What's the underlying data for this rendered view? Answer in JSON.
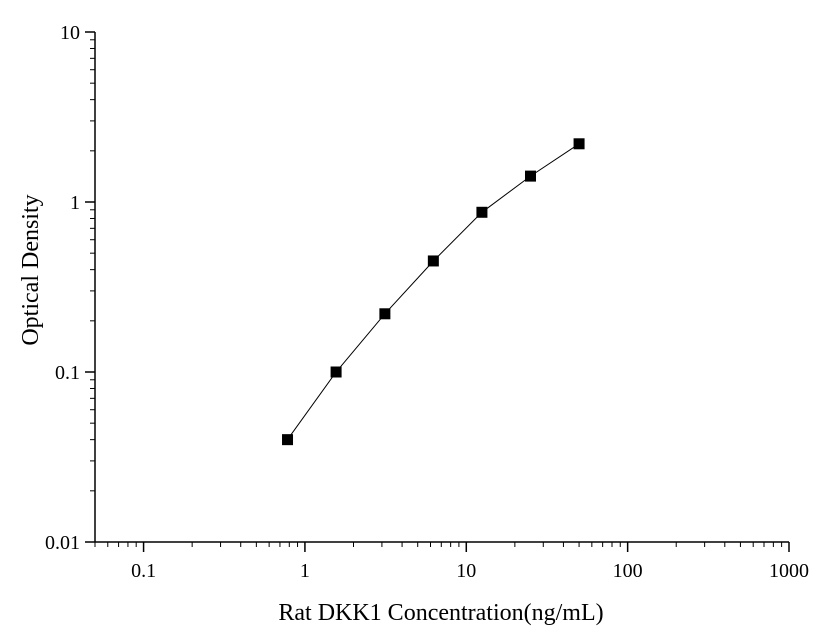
{
  "chart_data": {
    "type": "scatter",
    "xlabel": "Rat DKK1 Concentration(ng/mL)",
    "ylabel": "Optical Density",
    "x_scale": "log",
    "y_scale": "log",
    "xlim": [
      0.05,
      1000
    ],
    "ylim": [
      0.01,
      10
    ],
    "x_ticks": [
      {
        "value": 0.1,
        "label": "0.1"
      },
      {
        "value": 1,
        "label": "1"
      },
      {
        "value": 10,
        "label": "10"
      },
      {
        "value": 100,
        "label": "100"
      },
      {
        "value": 1000,
        "label": "1000"
      }
    ],
    "y_ticks": [
      {
        "value": 0.01,
        "label": "0.01"
      },
      {
        "value": 0.1,
        "label": "0.1"
      },
      {
        "value": 1,
        "label": "1"
      },
      {
        "value": 10,
        "label": "10"
      }
    ],
    "series": [
      {
        "marker": "square",
        "connected": true,
        "color": "#000000",
        "x": [
          0.78,
          1.56,
          3.13,
          6.25,
          12.5,
          25,
          50
        ],
        "y": [
          0.04,
          0.1,
          0.22,
          0.45,
          0.87,
          1.42,
          2.2
        ]
      }
    ],
    "grid": false,
    "legend": "none"
  }
}
